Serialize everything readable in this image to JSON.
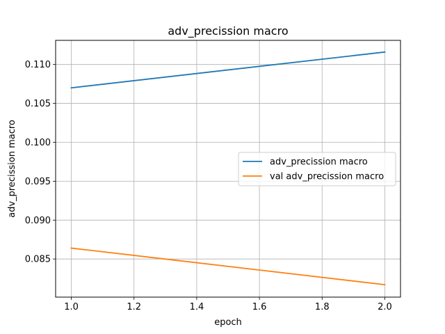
{
  "chart_data": {
    "type": "line",
    "title": "adv_precission macro",
    "xlabel": "epoch",
    "ylabel": "adv_precission macro",
    "x": [
      1.0,
      2.0
    ],
    "xlim": [
      0.95,
      2.05
    ],
    "ylim": [
      0.0801,
      0.1131
    ],
    "xticks": [
      1.0,
      1.2,
      1.4,
      1.6,
      1.8,
      2.0
    ],
    "xtick_labels": [
      "1.0",
      "1.2",
      "1.4",
      "1.6",
      "1.8",
      "2.0"
    ],
    "yticks": [
      0.085,
      0.09,
      0.095,
      0.1,
      0.105,
      0.11
    ],
    "ytick_labels": [
      "0.085",
      "0.090",
      "0.095",
      "0.100",
      "0.105",
      "0.110"
    ],
    "grid": true,
    "legend_position": "center-right",
    "series": [
      {
        "name": "adv_precission macro",
        "color": "#1f77b4",
        "values": [
          0.107,
          0.1116
        ]
      },
      {
        "name": "val adv_precission macro",
        "color": "#ff7f0e",
        "values": [
          0.0864,
          0.0817
        ]
      }
    ]
  }
}
